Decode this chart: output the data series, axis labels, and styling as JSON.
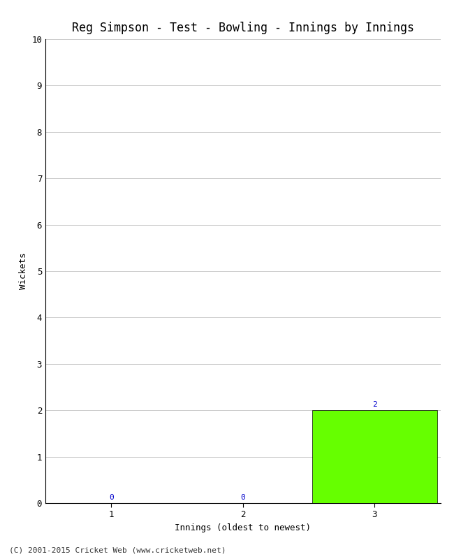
{
  "title": "Reg Simpson - Test - Bowling - Innings by Innings",
  "xlabel": "Innings (oldest to newest)",
  "ylabel": "Wickets",
  "categories": [
    1,
    2,
    3
  ],
  "values": [
    0,
    0,
    2
  ],
  "bar_color": "#66ff00",
  "ylim": [
    0,
    10
  ],
  "yticks": [
    0,
    1,
    2,
    3,
    4,
    5,
    6,
    7,
    8,
    9,
    10
  ],
  "xticks": [
    1,
    2,
    3
  ],
  "background_color": "#ffffff",
  "grid_color": "#cccccc",
  "annotation_color": "#0000cc",
  "footer": "(C) 2001-2015 Cricket Web (www.cricketweb.net)",
  "title_fontsize": 12,
  "axis_label_fontsize": 9,
  "tick_fontsize": 9,
  "annotation_fontsize": 8,
  "footer_fontsize": 8,
  "xlim": [
    0.5,
    3.5
  ]
}
